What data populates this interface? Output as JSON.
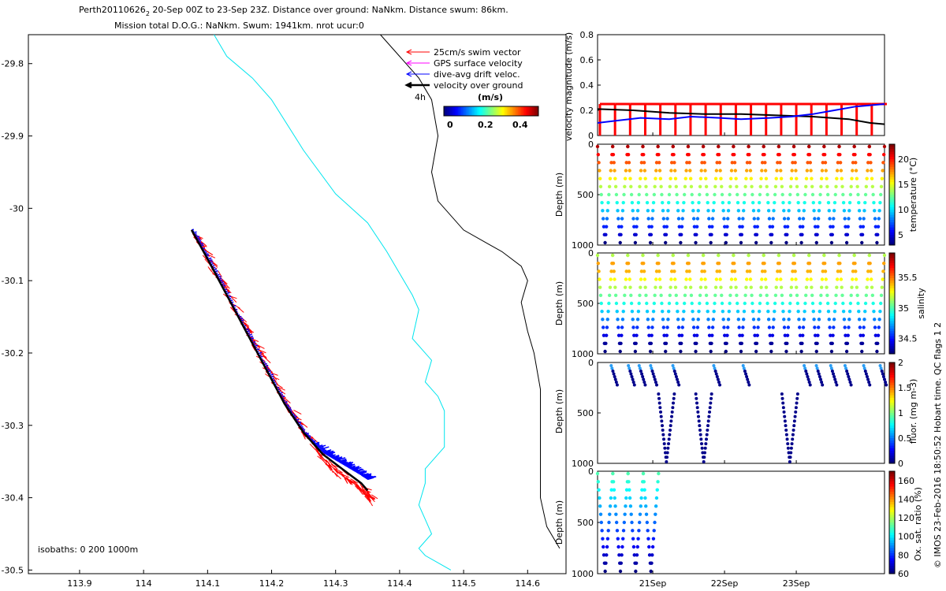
{
  "title": {
    "line1_prefix": "Perth20110626",
    "line1_sub": "2",
    "line1_rest": " 20-Sep 00Z to 23-Sep 23Z. Distance over ground: NaNkm. Distance swum: 86km.",
    "line2": "Mission total D.O.G.: NaNkm. Swum: 1941km. nrot ucur:0"
  },
  "timestamp_label": "© IMOS 23-Feb-2016 18:50:52 Hobart time. QC flags 1  2",
  "colors": {
    "swim": "#ff0000",
    "gps": "#ff00ff",
    "drift": "#0000ff",
    "ground": "#000000",
    "isobath_200": "#00e5ee",
    "isobath_1000": "#000000"
  },
  "legend": {
    "items": [
      "25cm/s swim vector",
      "GPS surface velocity",
      "dive-avg drift veloc.",
      "velocity over ground"
    ],
    "scale_label": "4h",
    "colorbar_title": "(m/s)",
    "colorbar_ticks": [
      "0",
      "0.2",
      "0.4"
    ]
  },
  "isobath_label": "isobaths: 0   200  1000m",
  "chart_data": [
    {
      "type": "scatter",
      "name": "track-map",
      "xlabel": "",
      "ylabel": "",
      "xlim": [
        113.82,
        114.66
      ],
      "ylim": [
        -30.505,
        -29.76
      ],
      "xticks": [
        113.9,
        114,
        114.1,
        114.2,
        114.3,
        114.4,
        114.5,
        114.6
      ],
      "yticks": [
        -29.8,
        -29.9,
        -30,
        -30.1,
        -30.2,
        -30.3,
        -30.4,
        -30.5
      ],
      "isobath_200": {
        "x": [
          114.11,
          114.13,
          114.17,
          114.2,
          114.25,
          114.3,
          114.35,
          114.38,
          114.4,
          114.42,
          114.43,
          114.42,
          114.45,
          114.44,
          114.46,
          114.47,
          114.47,
          114.47,
          114.44,
          114.44,
          114.43,
          114.44,
          114.45,
          114.43,
          114.44,
          114.46,
          114.48
        ],
        "y": [
          -29.76,
          -29.79,
          -29.82,
          -29.85,
          -29.92,
          -29.98,
          -30.02,
          -30.06,
          -30.09,
          -30.12,
          -30.14,
          -30.18,
          -30.21,
          -30.24,
          -30.26,
          -30.28,
          -30.3,
          -30.33,
          -30.36,
          -30.38,
          -30.41,
          -30.43,
          -30.45,
          -30.47,
          -30.48,
          -30.49,
          -30.5
        ]
      },
      "isobath_1000": {
        "x": [
          114.37,
          114.4,
          114.43,
          114.45,
          114.46,
          114.45,
          114.46,
          114.5,
          114.54,
          114.56,
          114.59,
          114.6,
          114.59,
          114.6,
          114.61,
          114.62,
          114.62,
          114.62,
          114.62,
          114.63,
          114.65
        ],
        "y": [
          -29.76,
          -29.79,
          -29.82,
          -29.85,
          -29.9,
          -29.95,
          -29.99,
          -30.03,
          -30.05,
          -30.06,
          -30.08,
          -30.1,
          -30.13,
          -30.17,
          -30.2,
          -30.25,
          -30.3,
          -30.35,
          -30.4,
          -30.44,
          -30.47
        ]
      },
      "track": {
        "x": [
          114.075,
          114.1,
          114.13,
          114.16,
          114.19,
          114.22,
          114.25,
          114.28,
          114.31,
          114.34,
          114.35
        ],
        "y": [
          -30.03,
          -30.07,
          -30.12,
          -30.17,
          -30.22,
          -30.27,
          -30.31,
          -30.34,
          -30.36,
          -30.38,
          -30.39
        ]
      }
    },
    {
      "type": "line",
      "name": "velocity-magnitude",
      "ylabel": "velocity magnitude (m/s)",
      "ylim": [
        0,
        0.8
      ],
      "yticks": [
        0,
        0.2,
        0.4,
        0.6,
        0.8
      ],
      "x_days": [
        0,
        4
      ],
      "drift": {
        "x": [
          0,
          0.3,
          0.6,
          1,
          1.3,
          1.7,
          2,
          2.4,
          2.7,
          3,
          3.3,
          3.6,
          4
        ],
        "y": [
          0.1,
          0.12,
          0.14,
          0.13,
          0.15,
          0.14,
          0.13,
          0.14,
          0.15,
          0.17,
          0.2,
          0.23,
          0.25
        ]
      },
      "ground": {
        "x": [
          0,
          0.5,
          1,
          1.5,
          2,
          2.5,
          3,
          3.5,
          3.8,
          4
        ],
        "y": [
          0.21,
          0.2,
          0.18,
          0.17,
          0.17,
          0.16,
          0.15,
          0.13,
          0.1,
          0.09
        ]
      },
      "swim_value": 0.25,
      "swim_dive_count": 19
    },
    {
      "type": "scatter",
      "name": "temperature-section",
      "ylabel": "Depth (m)",
      "clabel": "temperature (°C)",
      "ylim": [
        1000,
        0
      ],
      "clim": [
        3,
        23
      ],
      "cticks": [
        5,
        10,
        15,
        20
      ],
      "dives": 19,
      "max_depth": 1000,
      "sampled": [
        0,
        4
      ]
    },
    {
      "type": "scatter",
      "name": "salinity-section",
      "ylabel": "Depth (m)",
      "clabel": "salinity",
      "ylim": [
        1000,
        0
      ],
      "clim": [
        34.25,
        35.9
      ],
      "cticks": [
        34.5,
        35,
        35.5
      ],
      "dives": 19,
      "max_depth": 1000,
      "sampled": [
        0,
        4
      ]
    },
    {
      "type": "scatter",
      "name": "fluorescence-section",
      "ylabel": "Depth (m)",
      "clabel": "fluor. (mg m-3)",
      "ylim": [
        1000,
        0
      ],
      "clim": [
        0,
        2
      ],
      "cticks": [
        0,
        0.5,
        1,
        1.5,
        2
      ],
      "deep_dives": [
        {
          "t": 0.85,
          "depth": 1000
        },
        {
          "t": 1.37,
          "depth": 1000
        },
        {
          "t": 2.57,
          "depth": 1000
        }
      ],
      "shallow_dives": [
        0.19,
        0.43,
        0.58,
        0.74,
        1.05,
        1.62,
        2.03,
        2.88,
        3.05,
        3.25,
        3.45,
        3.71,
        3.94
      ]
    },
    {
      "type": "scatter",
      "name": "oxygen-section",
      "ylabel": "Depth (m)",
      "clabel": "Ox. sat. ratio (%)",
      "ylim": [
        1000,
        0
      ],
      "clim": [
        60,
        170
      ],
      "cticks": [
        60,
        80,
        100,
        120,
        140,
        160
      ],
      "dives": 4,
      "max_depth": 1000,
      "sampled": [
        0,
        0.85
      ]
    }
  ],
  "time_axis": {
    "labels": [
      "21Sep",
      "22Sep",
      "23Sep"
    ],
    "ticks": [
      0.77,
      1.77,
      2.77
    ]
  }
}
